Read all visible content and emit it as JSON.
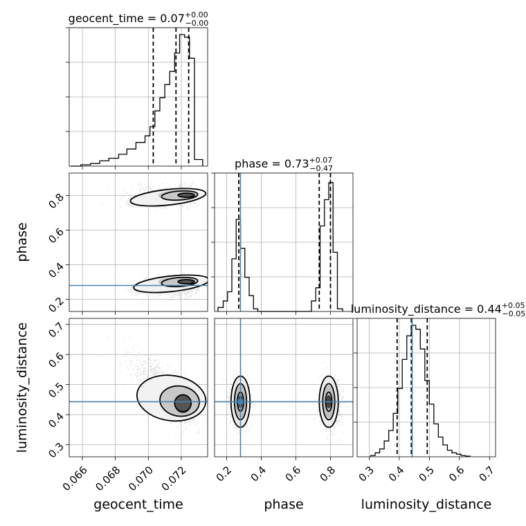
{
  "chart_data": {
    "type": "corner",
    "parameters": [
      "geocent_time",
      "phase",
      "luminosity_distance"
    ],
    "titles": [
      {
        "param": "geocent_time",
        "prefix": "geocent_time = ",
        "median": "0.07",
        "plus": "+0.00",
        "minus": "−0.00"
      },
      {
        "param": "phase",
        "prefix": "phase = ",
        "median": "0.73",
        "plus": "+0.07",
        "minus": "−0.47"
      },
      {
        "param": "luminosity_distance",
        "prefix": "luminosity_distance = ",
        "median": "0.44",
        "plus": "+0.05",
        "minus": "−0.05"
      }
    ],
    "ranges": {
      "geocent_time": [
        0.0652,
        0.0736
      ],
      "phase": [
        0.13,
        0.93
      ],
      "luminosity_distance": [
        0.26,
        0.72
      ]
    },
    "ticks": {
      "geocent_time": [
        0.066,
        0.068,
        0.07,
        0.072
      ],
      "phase": [
        0.2,
        0.4,
        0.6,
        0.8
      ],
      "luminosity_distance": [
        0.3,
        0.4,
        0.5,
        0.6,
        0.7
      ]
    },
    "tick_labels": {
      "geocent_time": [
        "0.066",
        "0.068",
        "0.070",
        "0.072"
      ],
      "phase": [
        "0.2",
        "0.4",
        "0.6",
        "0.8"
      ],
      "luminosity_distance": [
        "0.3",
        "0.4",
        "0.5",
        "0.6",
        "0.7"
      ]
    },
    "axis_labels": {
      "x": [
        "geocent_time",
        "phase",
        "luminosity_distance"
      ],
      "y": [
        "phase",
        "luminosity_distance"
      ]
    },
    "truths": {
      "geocent_time": null,
      "phase": 0.28,
      "luminosity_distance": 0.443
    },
    "quantiles": {
      "geocent_time": [
        0.0703,
        0.07168,
        0.07245
      ],
      "phase": [
        0.27,
        0.735,
        0.8
      ],
      "luminosity_distance": [
        0.393,
        0.44,
        0.493
      ]
    },
    "histograms": {
      "geocent_time": {
        "edges": [
          0.0653,
          0.0659,
          0.0665,
          0.06705,
          0.0676,
          0.0682,
          0.0687,
          0.06925,
          0.0698,
          0.0701,
          0.0704,
          0.0707,
          0.071,
          0.0713,
          0.0716,
          0.0719,
          0.0722,
          0.0725,
          0.0728,
          0.0733
        ],
        "counts": [
          0.0,
          0.01,
          0.02,
          0.04,
          0.06,
          0.09,
          0.13,
          0.18,
          0.23,
          0.3,
          0.42,
          0.52,
          0.62,
          0.72,
          0.86,
          1.0,
          0.98,
          0.82,
          0.05
        ]
      },
      "phase": {
        "edges": [
          0.15,
          0.18,
          0.205,
          0.23,
          0.255,
          0.28,
          0.305,
          0.33,
          0.355,
          0.38,
          0.55,
          0.58,
          0.69,
          0.715,
          0.74,
          0.765,
          0.79,
          0.815,
          0.84,
          0.87
        ],
        "counts": [
          0.03,
          0.08,
          0.15,
          0.4,
          0.7,
          0.48,
          0.26,
          0.12,
          0.02,
          0.0,
          0.0,
          0.0,
          0.08,
          0.18,
          0.65,
          0.85,
          0.98,
          0.45,
          0.02
        ]
      },
      "luminosity_distance": {
        "edges": [
          0.305,
          0.32,
          0.335,
          0.35,
          0.365,
          0.38,
          0.395,
          0.41,
          0.425,
          0.44,
          0.455,
          0.47,
          0.485,
          0.5,
          0.515,
          0.53,
          0.545,
          0.56,
          0.575,
          0.59,
          0.605,
          0.62,
          0.635
        ],
        "counts": [
          0.01,
          0.03,
          0.06,
          0.12,
          0.2,
          0.33,
          0.52,
          0.74,
          0.92,
          1.0,
          0.97,
          0.82,
          0.58,
          0.4,
          0.25,
          0.15,
          0.09,
          0.05,
          0.03,
          0.02,
          0.01,
          0.005
        ]
      }
    },
    "colors": {
      "truth": "#4682b4",
      "line": "#000000",
      "grid": "#b0b0b0",
      "scatter": "#808080"
    },
    "grid": true
  }
}
